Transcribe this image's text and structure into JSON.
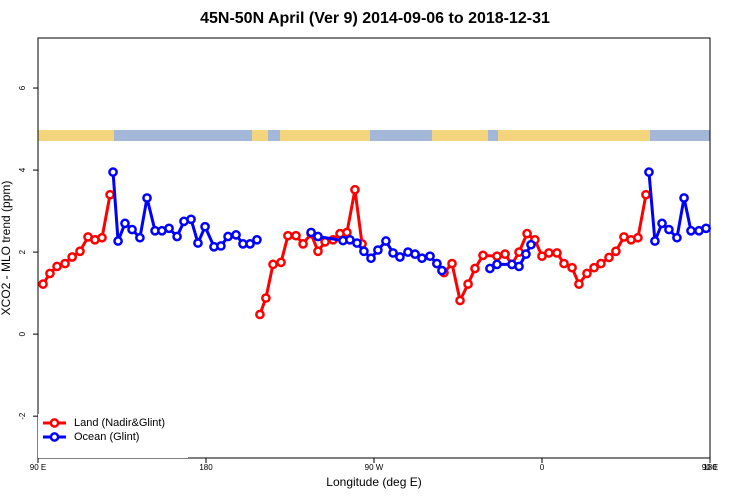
{
  "chart_data": {
    "type": "line",
    "title": "45N-50N April (Ver 9)   2014-09-06 to 2018-12-31",
    "xlabel": "Longitude (deg E)",
    "ylabel": "XCO2 - MLO trend (ppm)",
    "xlim": [
      90,
      450
    ],
    "ylim": [
      -3.02,
      7.22
    ],
    "xticks": [
      {
        "value": 90,
        "label": "90 E"
      },
      180,
      {
        "value": 270,
        "label": "90 W"
      },
      {
        "value": 360,
        "label": "0"
      },
      {
        "value": 450,
        "label": "90 E"
      },
      {
        "value": 540,
        "label": "180"
      }
    ],
    "yticks": [
      -2,
      0,
      2,
      4,
      6
    ],
    "legend": "bottom-left",
    "series": [
      {
        "name": "Land (Nadir&Glint)",
        "color": "#ff0000",
        "x": [
          92.7,
          96.4,
          100.2,
          104.5,
          108.3,
          112.5,
          116.8,
          120.5,
          124.3,
          128.6,
          null,
          208.9,
          212.1,
          215.9,
          220.2,
          223.9,
          228.2,
          232.0,
          236.3,
          240.0,
          243.8,
          248.1,
          251.8,
          255.5,
          259.8,
          263.6,
          null,
          303.7,
          307.5,
          311.8,
          316.1,
          320.4,
          324.1,
          328.4,
          335.9,
          340.2,
          343.9,
          347.7,
          352.0,
          356.2,
          360.0,
          363.7,
          368.0,
          371.8,
          376.1,
          379.8,
          384.1,
          387.9,
          391.6,
          395.9,
          399.6,
          403.9,
          407.7,
          411.4,
          415.7
        ],
        "values": [
          1.22,
          1.48,
          1.65,
          1.72,
          1.88,
          2.02,
          2.37,
          2.3,
          2.35,
          3.4,
          null,
          0.48,
          0.88,
          1.7,
          1.75,
          2.4,
          2.4,
          2.2,
          2.45,
          2.02,
          2.25,
          2.3,
          2.45,
          2.48,
          3.52,
          2.2,
          null,
          1.72,
          1.5,
          1.72,
          0.82,
          1.22,
          1.6,
          1.92,
          1.9,
          1.95,
          1.7,
          2.0,
          2.45,
          2.3,
          1.9,
          1.98,
          1.98,
          1.72,
          1.62,
          1.22,
          1.48,
          1.62,
          1.72,
          1.87,
          2.02,
          2.37,
          2.3,
          2.35,
          3.4
        ]
      },
      {
        "name": "Ocean (Glint)",
        "color": "#0000ff",
        "x": [
          130.2,
          132.9,
          136.6,
          140.4,
          144.6,
          148.4,
          152.7,
          156.4,
          160.2,
          164.5,
          168.2,
          172.0,
          175.7,
          179.5,
          184.3,
          188.0,
          191.8,
          196.1,
          199.8,
          203.6,
          207.3,
          null,
          236.3,
          240.0,
          253.4,
          257.1,
          260.9,
          264.6,
          268.4,
          272.1,
          276.4,
          280.2,
          283.9,
          288.2,
          292.0,
          295.7,
          300.0,
          303.7,
          306.4,
          null,
          332.1,
          335.9,
          343.9,
          347.7,
          351.4,
          354.1,
          null,
          417.3,
          420.5,
          424.3,
          428.0,
          432.3,
          436.1,
          439.8,
          444.1,
          447.9
        ],
        "values": [
          3.95,
          2.27,
          2.7,
          2.55,
          2.35,
          3.32,
          2.52,
          2.52,
          2.58,
          2.38,
          2.75,
          2.8,
          2.22,
          2.62,
          2.13,
          2.15,
          2.38,
          2.42,
          2.2,
          2.2,
          2.3,
          null,
          2.48,
          2.38,
          2.28,
          2.3,
          2.22,
          2.02,
          1.85,
          2.05,
          2.27,
          1.98,
          1.88,
          2.0,
          1.95,
          1.85,
          1.9,
          1.72,
          1.55,
          null,
          1.6,
          1.7,
          1.7,
          1.65,
          1.95,
          2.18,
          null,
          3.95,
          2.27,
          2.7,
          2.55,
          2.35,
          3.32,
          2.52,
          2.52,
          2.58
        ]
      }
    ]
  }
}
